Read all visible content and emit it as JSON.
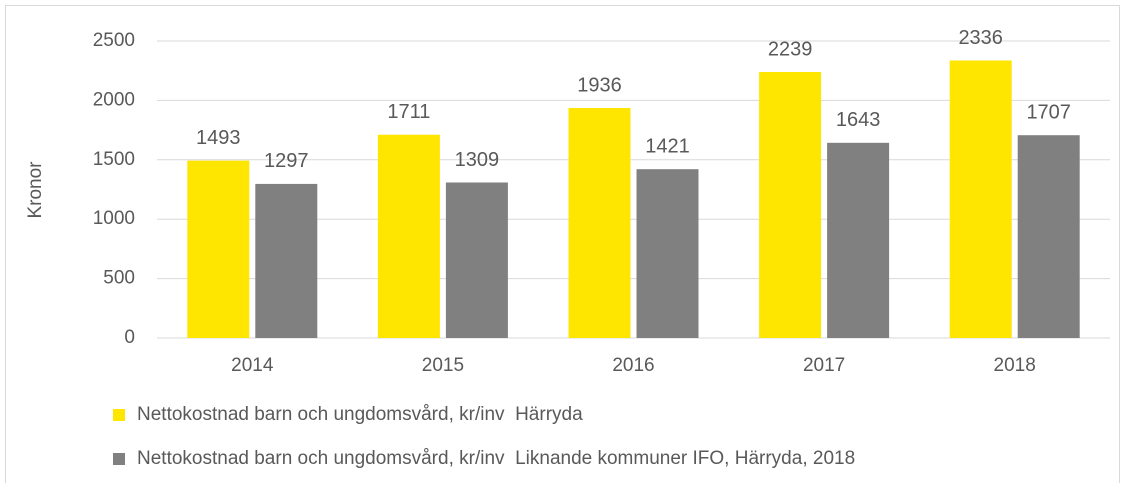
{
  "chart_data": {
    "type": "bar",
    "y_label": "Kronor",
    "categories": [
      "2014",
      "2015",
      "2016",
      "2017",
      "2018"
    ],
    "series": [
      {
        "name": "Nettokostnad barn och ungdomsvård, kr/inv  Härryda",
        "color": "#ffe600",
        "values": [
          1493,
          1711,
          1936,
          2239,
          2336
        ]
      },
      {
        "name": "Nettokostnad barn och ungdomsvård, kr/inv  Liknande kommuner IFO, Härryda, 2018",
        "color": "#808080",
        "values": [
          1297,
          1309,
          1421,
          1643,
          1707
        ]
      }
    ],
    "ylim": [
      0,
      2500
    ],
    "yticks": [
      0,
      500,
      1000,
      1500,
      2000,
      2500
    ],
    "grid": true,
    "legend": "bottom"
  }
}
